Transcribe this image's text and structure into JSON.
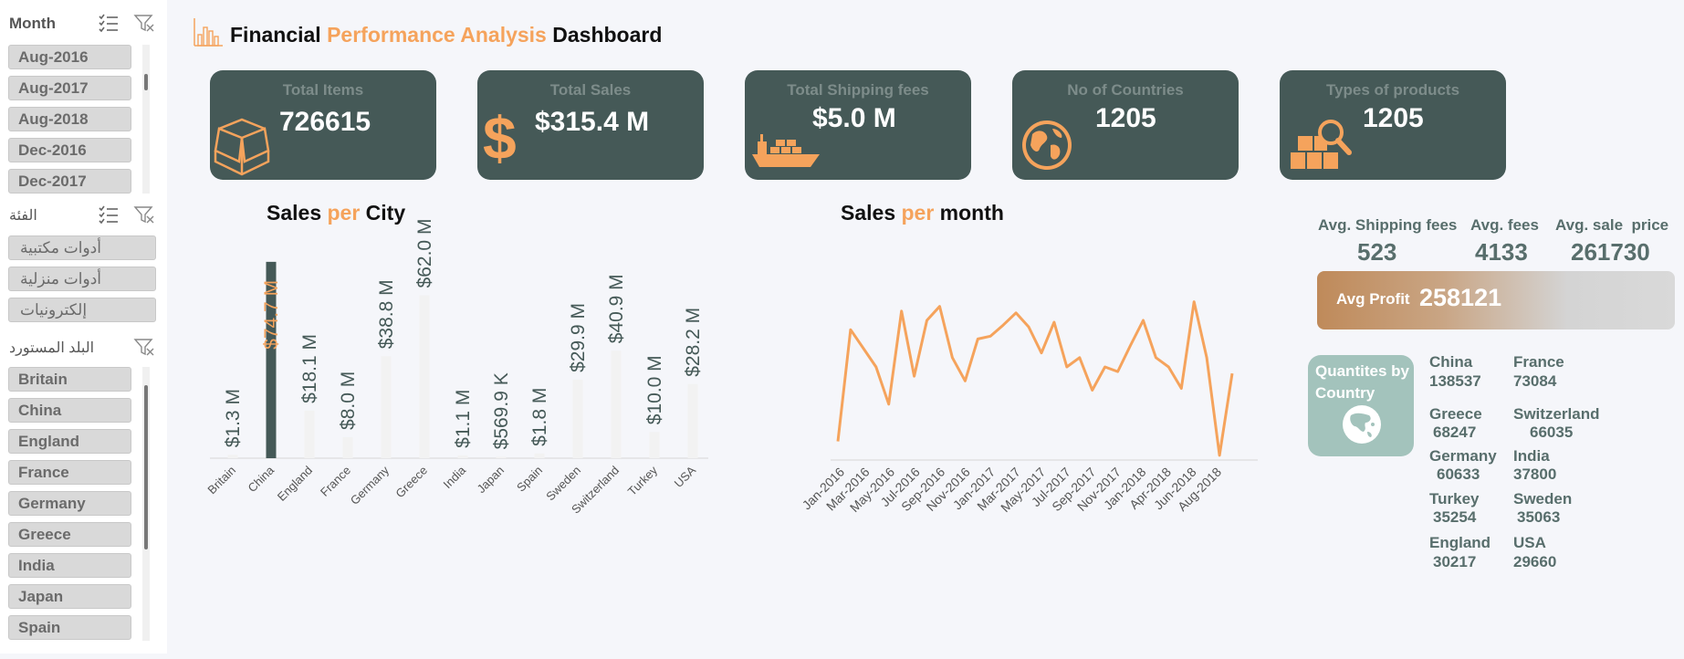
{
  "slicers": {
    "month": {
      "title": "Month",
      "items": [
        "Aug-2016",
        "Aug-2017",
        "Aug-2018",
        "Dec-2016",
        "Dec-2017"
      ]
    },
    "category": {
      "title": "الفئة",
      "items": [
        "أدوات مكتبية",
        "أدوات منزلية",
        "إلكترونيات"
      ]
    },
    "country": {
      "title": "البلد المستورد",
      "items": [
        "Britain",
        "China",
        "England",
        "France",
        "Germany",
        "Greece",
        "India",
        "Japan",
        "Spain"
      ]
    }
  },
  "dashboard_title": {
    "part1": "Financial ",
    "part2": "Performance Analysis",
    "part3": " Dashboard"
  },
  "kpis": [
    {
      "label": "Total Items",
      "value": "726615",
      "icon": "box-icon"
    },
    {
      "label": "Total Sales",
      "value": "$315.4 M",
      "icon": "dollar-icon"
    },
    {
      "label": "Total Shipping fees",
      "value": "$5.0 M",
      "icon": "ship-icon"
    },
    {
      "label": "No of Countries",
      "value": "1205",
      "icon": "globe-icon"
    },
    {
      "label": "Types of products",
      "value": "1205",
      "icon": "products-search-icon"
    }
  ],
  "colors": {
    "accent": "#f5a35c",
    "kpi_bg": "#455957",
    "bar": "#f2f2f2",
    "bar_highlight": "#455957",
    "line": "#f5a35c"
  },
  "chart_data": [
    {
      "type": "bar",
      "title_part1": "Sales ",
      "title_part2": "per",
      "title_part3": " City",
      "categories": [
        "Britain",
        "China",
        "England",
        "France",
        "Germany",
        "Greece",
        "India",
        "Japan",
        "Spain",
        "Sweden",
        "Switzerland",
        "Turkey",
        "USA"
      ],
      "values": [
        1.3,
        74.7,
        18.1,
        8.0,
        38.8,
        62.0,
        1.1,
        0.5699,
        1.8,
        29.9,
        40.9,
        10.0,
        28.2
      ],
      "data_labels": [
        "$1.3 M",
        "$74.7 M",
        "$18.1 M",
        "$8.0 M",
        "$38.8 M",
        "$62.0 M",
        "$1.1 M",
        "$569.9 K",
        "$1.8 M",
        "$29.9 M",
        "$40.9 M",
        "$10.0 M",
        "$28.2 M"
      ],
      "unit": "M",
      "highlight": "China",
      "ylim": [
        0,
        75
      ]
    },
    {
      "type": "line",
      "title_part1": "Sales ",
      "title_part2": "per",
      "title_part3": " month",
      "x_tick_labels": [
        "Jan-2016",
        "Mar-2016",
        "May-2016",
        "Jul-2016",
        "Sep-2016",
        "Nov-2016",
        "Jan-2017",
        "Mar-2017",
        "May-2017",
        "Jul-2017",
        "Sep-2017",
        "Nov-2017",
        "Jan-2018",
        "Apr-2018",
        "Jun-2018",
        "Aug-2018"
      ],
      "values": [
        2,
        14,
        12,
        10,
        6,
        16,
        9,
        15,
        16.5,
        11,
        8.5,
        13,
        13.3,
        14.5,
        15.8,
        14.3,
        11.5,
        14.8,
        10,
        11,
        7.5,
        10,
        9.5,
        12.3,
        15,
        11,
        10,
        7.7,
        17,
        11,
        0.5,
        9.3
      ],
      "ylim": [
        0,
        20
      ]
    }
  ],
  "averages": [
    {
      "label": "Avg. Shipping fees",
      "value": "523"
    },
    {
      "label": "Avg. fees",
      "value": "4133"
    },
    {
      "label": "Avg. sale  price",
      "value": "261730"
    }
  ],
  "profit": {
    "label": "Avg Profit",
    "value": "258121"
  },
  "quantities": {
    "label": "Quantites by Country",
    "countries": [
      {
        "name": "China",
        "qty": "138537"
      },
      {
        "name": "France",
        "qty": "73084"
      },
      {
        "name": "Greece",
        "qty": "68247"
      },
      {
        "name": "Switzerland",
        "qty": "66035"
      },
      {
        "name": "Germany",
        "qty": "60633"
      },
      {
        "name": "India",
        "qty": "37800"
      },
      {
        "name": "Turkey",
        "qty": "35254"
      },
      {
        "name": "Sweden",
        "qty": "35063"
      },
      {
        "name": "England",
        "qty": "30217"
      },
      {
        "name": "USA",
        "qty": "29660"
      }
    ]
  }
}
